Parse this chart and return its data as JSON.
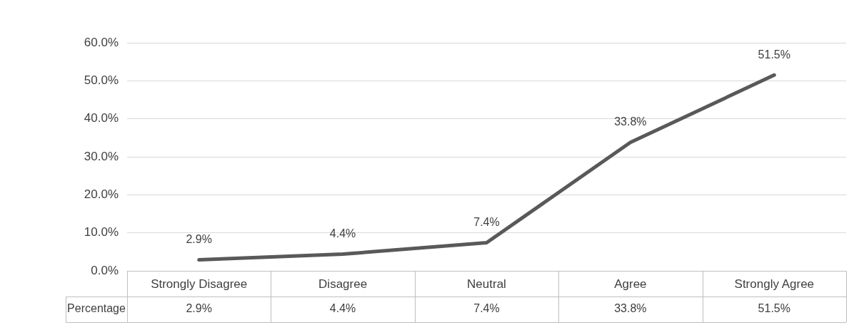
{
  "chart_data": {
    "type": "line",
    "categories": [
      "Strongly Disagree",
      "Disagree",
      "Neutral",
      "Agree",
      "Strongly Agree"
    ],
    "series": [
      {
        "name": "Percentage",
        "color": "#595959",
        "values": [
          2.9,
          4.4,
          7.4,
          33.8,
          51.5
        ]
      }
    ],
    "ylim": [
      0,
      60
    ],
    "yticks": [
      {
        "value": 0,
        "label": "0.0%"
      },
      {
        "value": 10,
        "label": "10.0%"
      },
      {
        "value": 20,
        "label": "20.0%"
      },
      {
        "value": 30,
        "label": "30.0%"
      },
      {
        "value": 40,
        "label": "40.0%"
      },
      {
        "value": 50,
        "label": "50.0%"
      },
      {
        "value": 60,
        "label": "60.0%"
      }
    ],
    "value_labels": [
      "2.9%",
      "4.4%",
      "7.4%",
      "33.8%",
      "51.5%"
    ],
    "grid": "y",
    "legend": false,
    "marker": "none",
    "line_style": "solid"
  }
}
